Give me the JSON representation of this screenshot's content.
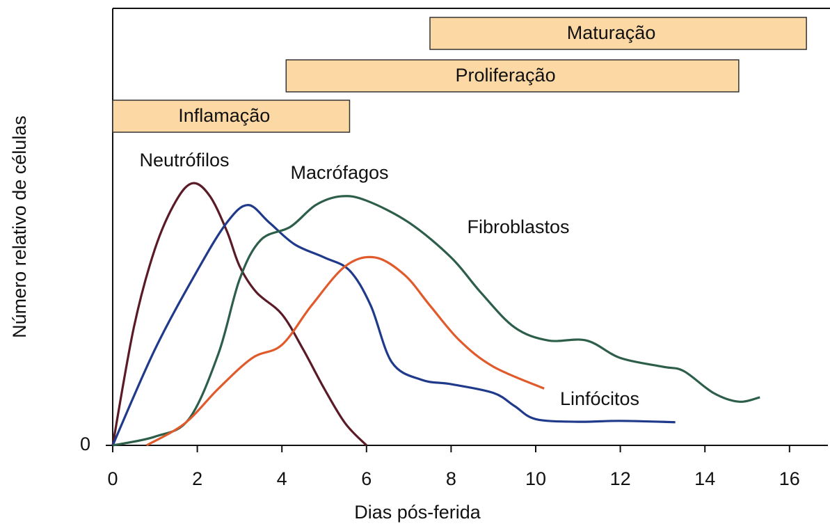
{
  "chart_data": {
    "type": "line",
    "xlabel": "Dias pós-ferida",
    "ylabel": "Número relativo de células",
    "xlim": [
      0,
      16.5
    ],
    "ylim": [
      0,
      100
    ],
    "xticks": [
      0,
      2,
      4,
      6,
      8,
      10,
      12,
      14,
      16
    ],
    "yticks": [
      0
    ],
    "phases": [
      {
        "name": "Maturação",
        "start": 7.5,
        "end": 16.4
      },
      {
        "name": "Proliferação",
        "start": 4.1,
        "end": 14.8
      },
      {
        "name": "Inflamação",
        "start": 0,
        "end": 5.6
      }
    ],
    "series": [
      {
        "name": "Neutrófilos",
        "color": "#5a1a26",
        "x": [
          0,
          0.5,
          1,
          1.5,
          1.9,
          2.3,
          2.7,
          3,
          3.4,
          4,
          4.5,
          5,
          5.5,
          6
        ],
        "values": [
          0,
          27,
          45,
          56,
          60,
          57,
          49,
          41,
          35,
          30,
          22,
          13,
          5,
          0
        ]
      },
      {
        "name": "Macrófagos",
        "color": "#1f3a8a",
        "x": [
          0,
          1,
          2,
          2.7,
          3.2,
          3.7,
          4.3,
          5,
          5.6,
          6.1,
          6.6,
          7.3,
          8,
          9,
          9.5,
          10,
          11,
          12,
          13.3
        ],
        "values": [
          0,
          22,
          40,
          51,
          55,
          51,
          46,
          43,
          40,
          32,
          19,
          15,
          14,
          12,
          9,
          6,
          5.4,
          5.6,
          5.3
        ]
      },
      {
        "name": "Fibroblastos",
        "color": "#2d5e4a",
        "x": [
          0,
          1,
          1.8,
          2.5,
          3,
          3.5,
          4.2,
          4.8,
          5.4,
          6,
          7,
          8,
          8.7,
          9.5,
          10.3,
          11.2,
          12,
          13,
          13.5,
          14.2,
          14.8,
          15.3
        ],
        "values": [
          0,
          2,
          6,
          21,
          38,
          47,
          50,
          55,
          57,
          56,
          51,
          43,
          35,
          27,
          24,
          24,
          20,
          18,
          17,
          12,
          10,
          11
        ]
      },
      {
        "name": "Linfócitos",
        "color": "#e05a2b",
        "x": [
          0.8,
          1.7,
          2.5,
          3.3,
          4,
          4.7,
          5.5,
          6.2,
          6.9,
          7.5,
          8.2,
          9,
          10.2
        ],
        "values": [
          0,
          5,
          13,
          20,
          23,
          32,
          41,
          43,
          39,
          32,
          24,
          18,
          13
        ]
      }
    ]
  }
}
